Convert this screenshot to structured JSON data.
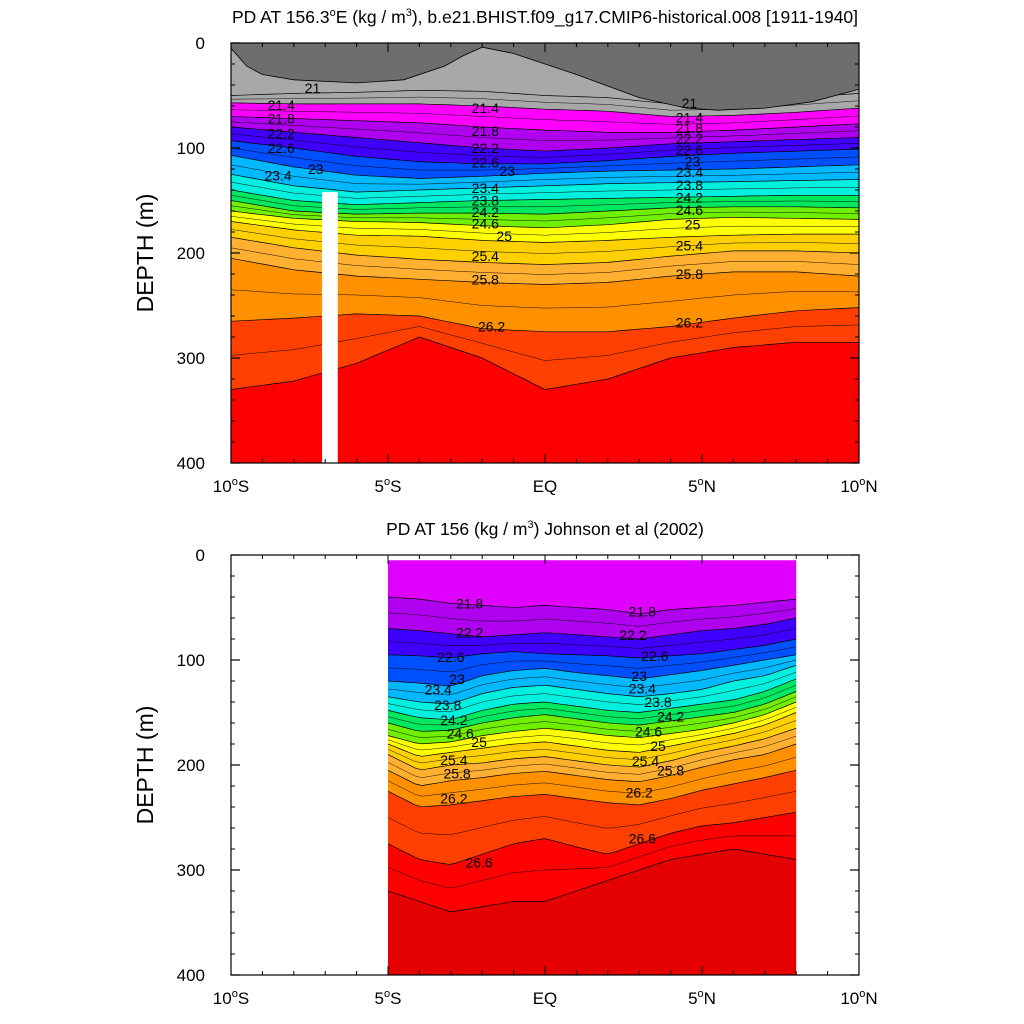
{
  "chart_data": [
    {
      "type": "heatmap",
      "title_parts": {
        "pre": "PD AT 156.3",
        "deg": "o",
        "mid": "E (kg / m",
        "sup": "3",
        "post": "), b.e21.BHIST.f09_g17.CMIP6-historical.008 [1911-1940]"
      },
      "ylabel": "DEPTH (m)",
      "xlim": [
        -10,
        10
      ],
      "ylim": [
        0,
        400
      ],
      "y_reversed": true,
      "x_ticks": [
        {
          "value": -10,
          "num": "10",
          "deg": "o",
          "hem": "S"
        },
        {
          "value": -5,
          "num": "5",
          "deg": "o",
          "hem": "S"
        },
        {
          "value": 0,
          "num": "EQ",
          "deg": "",
          "hem": ""
        },
        {
          "value": 5,
          "num": "5",
          "deg": "o",
          "hem": "N"
        },
        {
          "value": 10,
          "num": "10",
          "deg": "o",
          "hem": "N"
        }
      ],
      "y_ticks": [
        "0",
        "100",
        "200",
        "300",
        "400"
      ],
      "y_tick_values": [
        0,
        100,
        200,
        300,
        400
      ],
      "data_extent": [
        -10,
        10
      ],
      "missing_strip": [
        -7.1,
        -6.6,
        142,
        400
      ],
      "land_top": [
        [
          -10,
          5
        ],
        [
          -9.5,
          22
        ],
        [
          -9,
          30
        ],
        [
          -8,
          35
        ],
        [
          -6,
          38
        ],
        [
          -4.5,
          35
        ],
        [
          -3.2,
          22
        ],
        [
          -2.6,
          12
        ],
        [
          -2,
          4
        ],
        [
          -1,
          10
        ],
        [
          1,
          30
        ],
        [
          3,
          52
        ],
        [
          4.5,
          62
        ],
        [
          5.5,
          64
        ],
        [
          7,
          62
        ],
        [
          8.5,
          56
        ],
        [
          10,
          44
        ]
      ],
      "contour_levels": [
        21,
        21.2,
        21.4,
        21.6,
        21.8,
        22,
        22.2,
        22.4,
        22.6,
        22.8,
        23,
        23.2,
        23.4,
        23.6,
        23.8,
        24,
        24.2,
        24.4,
        24.6,
        24.8,
        25,
        25.2,
        25.4,
        25.6,
        25.8,
        26,
        26.2,
        26.4,
        26.6
      ],
      "isopycnal_depth_at_x": {
        "x": [
          -10,
          -8,
          -6,
          -4,
          -2,
          0,
          2,
          4,
          6,
          8,
          10
        ],
        "levels": {
          "21": [
            50,
            48,
            47,
            45,
            46,
            50,
            52,
            58,
            57,
            52,
            48
          ],
          "21.4": [
            57,
            58,
            58,
            58,
            60,
            63,
            65,
            70,
            69,
            66,
            62
          ],
          "21.8": [
            70,
            72,
            74,
            76,
            80,
            83,
            85,
            85,
            83,
            80,
            77
          ],
          "22.2": [
            80,
            85,
            90,
            95,
            100,
            103,
            100,
            96,
            94,
            92,
            90
          ],
          "22.6": [
            93,
            100,
            108,
            113,
            115,
            115,
            112,
            108,
            105,
            103,
            101
          ],
          "23": [
            107,
            118,
            126,
            129,
            127,
            124,
            122,
            121,
            120,
            118,
            116
          ],
          "23.4": [
            125,
            136,
            142,
            140,
            138,
            136,
            134,
            133,
            132,
            131,
            130
          ],
          "23.8": [
            140,
            150,
            154,
            152,
            150,
            149,
            148,
            147,
            146,
            145,
            145
          ],
          "24.2": [
            150,
            160,
            163,
            162,
            162,
            163,
            160,
            157,
            156,
            156,
            157
          ],
          "24.6": [
            160,
            167,
            170,
            171,
            174,
            176,
            173,
            168,
            166,
            167,
            168
          ],
          "25": [
            170,
            178,
            183,
            184,
            188,
            190,
            188,
            185,
            183,
            182,
            182
          ],
          "25.4": [
            185,
            195,
            202,
            206,
            209,
            211,
            209,
            203,
            198,
            198,
            200
          ],
          "25.8": [
            205,
            216,
            222,
            225,
            228,
            230,
            228,
            222,
            218,
            218,
            222
          ],
          "26.2": [
            265,
            262,
            258,
            260,
            272,
            275,
            275,
            270,
            262,
            255,
            252
          ],
          "26.6": [
            330,
            322,
            305,
            280,
            300,
            330,
            320,
            300,
            290,
            285,
            285
          ]
        }
      },
      "contour_labels": [
        {
          "text": "21",
          "x": -7.4,
          "y": 43
        },
        {
          "text": "21.4",
          "x": -8.4,
          "y": 59
        },
        {
          "text": "21.8",
          "x": -8.4,
          "y": 72
        },
        {
          "text": "22.2",
          "x": -8.4,
          "y": 86
        },
        {
          "text": "22.6",
          "x": -8.4,
          "y": 100
        },
        {
          "text": "23",
          "x": -7.3,
          "y": 120
        },
        {
          "text": "23.4",
          "x": -8.5,
          "y": 126
        },
        {
          "text": "21.4",
          "x": -1.9,
          "y": 62
        },
        {
          "text": "21.8",
          "x": -1.9,
          "y": 84
        },
        {
          "text": "22.2",
          "x": -1.9,
          "y": 100
        },
        {
          "text": "22.6",
          "x": -1.9,
          "y": 114
        },
        {
          "text": "23",
          "x": -1.2,
          "y": 122
        },
        {
          "text": "23.4",
          "x": -1.9,
          "y": 138
        },
        {
          "text": "23.8",
          "x": -1.9,
          "y": 150
        },
        {
          "text": "24.2",
          "x": -1.9,
          "y": 161
        },
        {
          "text": "24.6",
          "x": -1.9,
          "y": 172
        },
        {
          "text": "25",
          "x": -1.3,
          "y": 184
        },
        {
          "text": "25.4",
          "x": -1.9,
          "y": 203
        },
        {
          "text": "25.8",
          "x": -1.9,
          "y": 225
        },
        {
          "text": "26.2",
          "x": -1.7,
          "y": 270
        },
        {
          "text": "21",
          "x": 4.6,
          "y": 57
        },
        {
          "text": "21.4",
          "x": 4.6,
          "y": 71
        },
        {
          "text": "21.8",
          "x": 4.6,
          "y": 81
        },
        {
          "text": "22.2",
          "x": 4.6,
          "y": 91
        },
        {
          "text": "22.6",
          "x": 4.6,
          "y": 102
        },
        {
          "text": "23",
          "x": 4.7,
          "y": 113
        },
        {
          "text": "23.4",
          "x": 4.6,
          "y": 123
        },
        {
          "text": "23.8",
          "x": 4.6,
          "y": 135
        },
        {
          "text": "24.2",
          "x": 4.6,
          "y": 147
        },
        {
          "text": "24.6",
          "x": 4.6,
          "y": 159
        },
        {
          "text": "25",
          "x": 4.7,
          "y": 173
        },
        {
          "text": "25.4",
          "x": 4.6,
          "y": 193
        },
        {
          "text": "25.8",
          "x": 4.6,
          "y": 220
        },
        {
          "text": "26.2",
          "x": 4.6,
          "y": 266
        }
      ]
    },
    {
      "type": "heatmap",
      "title_parts": {
        "pre": "PD AT 156 (kg / m",
        "sup": "3",
        "post": ") Johnson et al (2002)"
      },
      "ylabel": "DEPTH (m)",
      "xlim": [
        -10,
        10
      ],
      "ylim": [
        0,
        400
      ],
      "y_reversed": true,
      "x_ticks": [
        {
          "value": -10,
          "num": "10",
          "deg": "o",
          "hem": "S"
        },
        {
          "value": -5,
          "num": "5",
          "deg": "o",
          "hem": "S"
        },
        {
          "value": 0,
          "num": "EQ",
          "deg": "",
          "hem": ""
        },
        {
          "value": 5,
          "num": "5",
          "deg": "o",
          "hem": "N"
        },
        {
          "value": 10,
          "num": "10",
          "deg": "o",
          "hem": "N"
        }
      ],
      "y_ticks": [
        "0",
        "100",
        "200",
        "300",
        "400"
      ],
      "y_tick_values": [
        0,
        100,
        200,
        300,
        400
      ],
      "data_extent": [
        -5,
        8
      ],
      "data_top": 5,
      "land_top": [],
      "contour_levels": [
        21.8,
        22,
        22.2,
        22.4,
        22.6,
        22.8,
        23,
        23.2,
        23.4,
        23.6,
        23.8,
        24,
        24.2,
        24.4,
        24.6,
        24.8,
        25,
        25.2,
        25.4,
        25.6,
        25.8,
        26,
        26.2,
        26.4,
        26.6,
        26.8
      ],
      "isopycnal_depth_at_x": {
        "x": [
          -5,
          -4,
          -3,
          -2,
          -1,
          0,
          1,
          2,
          3,
          4,
          5,
          6,
          7,
          8
        ],
        "levels": {
          "21.8": [
            40,
            42,
            46,
            48,
            50,
            48,
            50,
            52,
            56,
            52,
            50,
            48,
            45,
            42
          ],
          "22.2": [
            70,
            72,
            75,
            78,
            76,
            74,
            76,
            78,
            80,
            76,
            72,
            70,
            66,
            60
          ],
          "22.6": [
            95,
            96,
            98,
            94,
            92,
            94,
            95,
            96,
            98,
            96,
            94,
            90,
            86,
            80
          ],
          "23": [
            120,
            122,
            125,
            115,
            110,
            108,
            112,
            115,
            118,
            114,
            110,
            105,
            100,
            95
          ],
          "23.4": [
            135,
            140,
            142,
            132,
            126,
            124,
            128,
            132,
            135,
            132,
            128,
            120,
            115,
            105
          ],
          "23.8": [
            148,
            155,
            157,
            148,
            142,
            140,
            144,
            148,
            150,
            146,
            142,
            138,
            130,
            118
          ],
          "24.2": [
            160,
            168,
            167,
            160,
            155,
            152,
            156,
            160,
            162,
            158,
            154,
            150,
            142,
            130
          ],
          "24.6": [
            172,
            180,
            178,
            172,
            168,
            165,
            168,
            172,
            174,
            170,
            166,
            160,
            152,
            140
          ],
          "25": [
            180,
            192,
            188,
            184,
            180,
            178,
            182,
            186,
            188,
            182,
            176,
            170,
            162,
            150
          ],
          "25.4": [
            190,
            205,
            200,
            198,
            194,
            192,
            196,
            200,
            202,
            196,
            188,
            182,
            175,
            165
          ],
          "25.8": [
            205,
            220,
            215,
            212,
            208,
            206,
            210,
            214,
            216,
            210,
            202,
            195,
            190,
            180
          ],
          "26.2": [
            225,
            240,
            238,
            234,
            230,
            228,
            232,
            236,
            238,
            232,
            224,
            218,
            212,
            205
          ],
          "26.6": [
            275,
            290,
            295,
            285,
            275,
            270,
            278,
            285,
            275,
            265,
            258,
            255,
            250,
            245
          ],
          "26.8": [
            320,
            330,
            340,
            335,
            330,
            330,
            320,
            310,
            300,
            290,
            285,
            280,
            285,
            290
          ]
        }
      },
      "contour_labels": [
        {
          "text": "21.8",
          "x": -2.4,
          "y": 46
        },
        {
          "text": "22.2",
          "x": -2.4,
          "y": 74
        },
        {
          "text": "22.6",
          "x": -3.0,
          "y": 97
        },
        {
          "text": "23",
          "x": -2.8,
          "y": 118
        },
        {
          "text": "23.4",
          "x": -3.4,
          "y": 128
        },
        {
          "text": "23.8",
          "x": -3.1,
          "y": 143
        },
        {
          "text": "24.2",
          "x": -2.9,
          "y": 157
        },
        {
          "text": "24.6",
          "x": -2.7,
          "y": 170
        },
        {
          "text": "25",
          "x": -2.1,
          "y": 178
        },
        {
          "text": "25.4",
          "x": -2.9,
          "y": 195
        },
        {
          "text": "25.8",
          "x": -2.8,
          "y": 208
        },
        {
          "text": "26.2",
          "x": -2.9,
          "y": 232
        },
        {
          "text": "26.6",
          "x": -2.1,
          "y": 293
        },
        {
          "text": "21.8",
          "x": 3.1,
          "y": 54
        },
        {
          "text": "22.2",
          "x": 2.8,
          "y": 76
        },
        {
          "text": "22.6",
          "x": 3.5,
          "y": 96
        },
        {
          "text": "23",
          "x": 3.0,
          "y": 115
        },
        {
          "text": "23.4",
          "x": 3.1,
          "y": 127
        },
        {
          "text": "23.8",
          "x": 3.6,
          "y": 140
        },
        {
          "text": "24.2",
          "x": 4.0,
          "y": 154
        },
        {
          "text": "24.6",
          "x": 3.3,
          "y": 168
        },
        {
          "text": "25",
          "x": 3.6,
          "y": 182
        },
        {
          "text": "25.4",
          "x": 3.2,
          "y": 196
        },
        {
          "text": "25.8",
          "x": 4.0,
          "y": 205
        },
        {
          "text": "26.2",
          "x": 3.0,
          "y": 226
        },
        {
          "text": "26.6",
          "x": 3.1,
          "y": 270
        }
      ]
    }
  ]
}
